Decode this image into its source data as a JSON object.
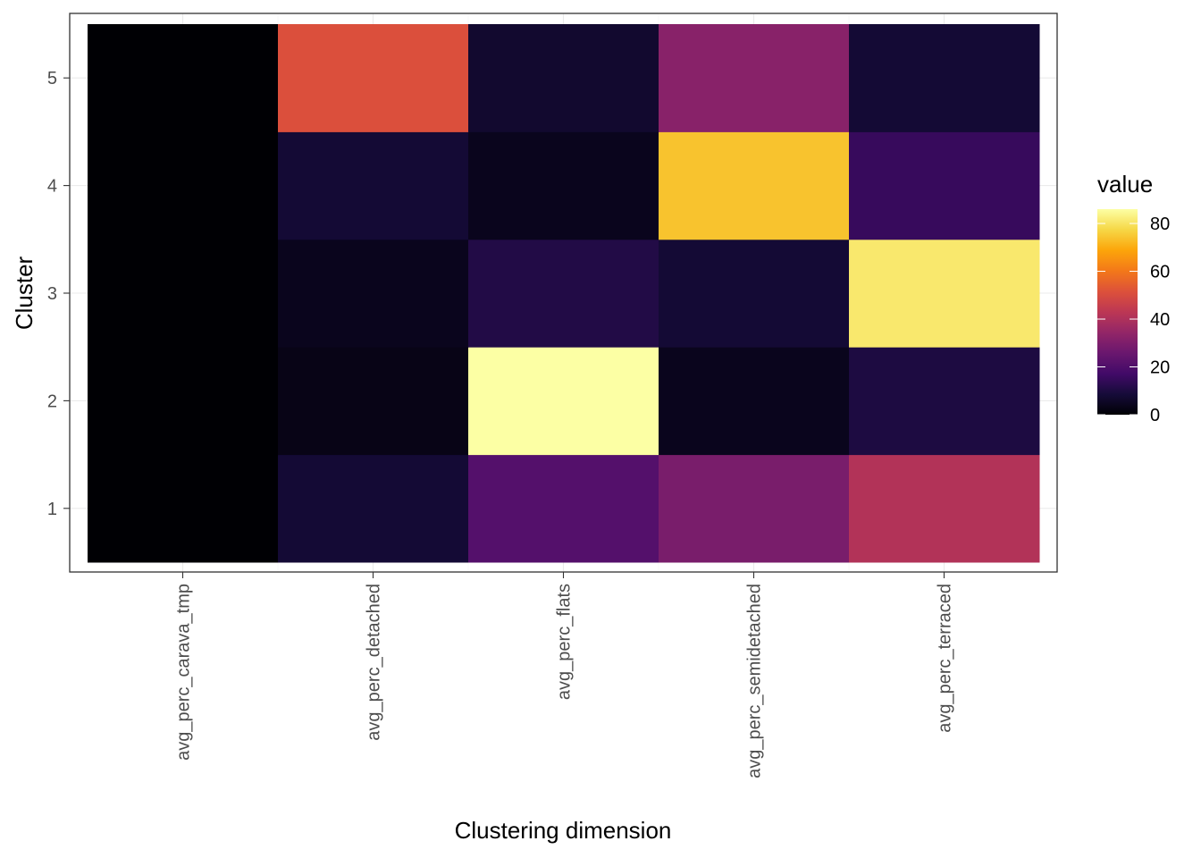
{
  "chart_data": {
    "type": "heatmap",
    "xlabel": "Clustering dimension",
    "ylabel": "Cluster",
    "x_categories": [
      "avg_perc_carava_tmp",
      "avg_perc_detached",
      "avg_perc_flats",
      "avg_perc_semidetached",
      "avg_perc_terraced"
    ],
    "y_categories": [
      "1",
      "2",
      "3",
      "4",
      "5"
    ],
    "values": [
      [
        0,
        8,
        21,
        29,
        41
      ],
      [
        0,
        3,
        86,
        4,
        10
      ],
      [
        0,
        4,
        11,
        8,
        81
      ],
      [
        0,
        8,
        4,
        74,
        15
      ],
      [
        0,
        51,
        7,
        32,
        8
      ]
    ],
    "legend": {
      "title": "value",
      "ticks": [
        0,
        20,
        40,
        60,
        80
      ],
      "range": [
        0,
        86
      ],
      "placement": "right",
      "palette": "inferno"
    },
    "grid": true
  }
}
